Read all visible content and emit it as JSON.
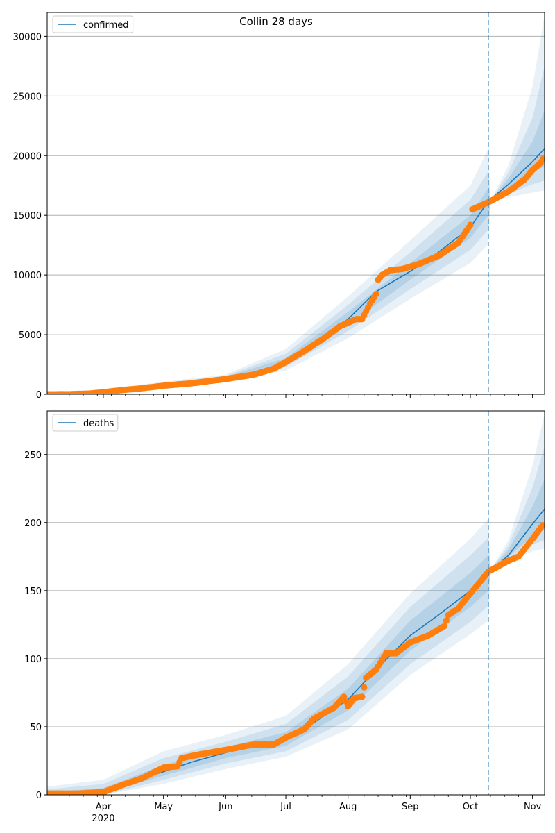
{
  "figure_title": "Collin 28 days",
  "colors": {
    "model_line": "#1f77b4",
    "observed": "#ff7f0e",
    "band": "#1f77b4",
    "grid": "#b0b0b0",
    "forecast_line": "#1f77b4"
  },
  "x_axis": {
    "start": "2020-03-04",
    "end": "2020-11-07",
    "month_labels": [
      {
        "date": "2020-04-01",
        "label": "Apr"
      },
      {
        "date": "2020-05-01",
        "label": "May"
      },
      {
        "date": "2020-06-01",
        "label": "Jun"
      },
      {
        "date": "2020-07-01",
        "label": "Jul"
      },
      {
        "date": "2020-08-01",
        "label": "Aug"
      },
      {
        "date": "2020-09-01",
        "label": "Sep"
      },
      {
        "date": "2020-10-01",
        "label": "Oct"
      },
      {
        "date": "2020-11-01",
        "label": "Nov"
      }
    ],
    "year_label": "2020",
    "forecast_start": "2020-10-10"
  },
  "chart_data": [
    {
      "type": "line",
      "name": "confirmed",
      "legend": "confirmed",
      "legend_position": "top-left",
      "grid": true,
      "ylim": [
        0,
        32000
      ],
      "yticks": [
        0,
        5000,
        10000,
        15000,
        20000,
        25000,
        30000
      ],
      "model_points": [
        {
          "x": "2020-03-04",
          "y": 0
        },
        {
          "x": "2020-03-20",
          "y": 30
        },
        {
          "x": "2020-04-01",
          "y": 250
        },
        {
          "x": "2020-04-15",
          "y": 520
        },
        {
          "x": "2020-05-01",
          "y": 800
        },
        {
          "x": "2020-05-15",
          "y": 1030
        },
        {
          "x": "2020-06-01",
          "y": 1350
        },
        {
          "x": "2020-06-15",
          "y": 1650
        },
        {
          "x": "2020-06-25",
          "y": 2200
        },
        {
          "x": "2020-07-01",
          "y": 2800
        },
        {
          "x": "2020-07-15",
          "y": 4100
        },
        {
          "x": "2020-08-01",
          "y": 6300
        },
        {
          "x": "2020-08-15",
          "y": 8600
        },
        {
          "x": "2020-09-01",
          "y": 10300
        },
        {
          "x": "2020-09-15",
          "y": 11900
        },
        {
          "x": "2020-10-01",
          "y": 14000
        },
        {
          "x": "2020-10-10",
          "y": 16200
        },
        {
          "x": "2020-10-20",
          "y": 17600
        },
        {
          "x": "2020-11-01",
          "y": 19500
        },
        {
          "x": "2020-11-07",
          "y": 20600
        }
      ],
      "bands": [
        {
          "level": "outer",
          "points": [
            {
              "x": "2020-03-04",
              "lo": 0,
              "hi": 100
            },
            {
              "x": "2020-04-01",
              "lo": 130,
              "hi": 400
            },
            {
              "x": "2020-05-01",
              "lo": 600,
              "hi": 1050
            },
            {
              "x": "2020-06-01",
              "lo": 1100,
              "hi": 1650
            },
            {
              "x": "2020-07-01",
              "lo": 2000,
              "hi": 3800
            },
            {
              "x": "2020-08-01",
              "lo": 4700,
              "hi": 8200
            },
            {
              "x": "2020-09-01",
              "lo": 8000,
              "hi": 12900
            },
            {
              "x": "2020-10-01",
              "lo": 11000,
              "hi": 17500
            },
            {
              "x": "2020-10-10",
              "lo": 12600,
              "hi": 20600
            },
            {
              "x": "2020-10-11",
              "lo": 16200,
              "hi": 16200
            },
            {
              "x": "2020-10-20",
              "lo": 16500,
              "hi": 19200
            },
            {
              "x": "2020-11-01",
              "lo": 16900,
              "hi": 25800
            },
            {
              "x": "2020-11-07",
              "lo": 17100,
              "hi": 31800
            }
          ]
        },
        {
          "level": "middle",
          "points": [
            {
              "x": "2020-03-04",
              "lo": 0,
              "hi": 60
            },
            {
              "x": "2020-04-01",
              "lo": 170,
              "hi": 340
            },
            {
              "x": "2020-05-01",
              "lo": 670,
              "hi": 960
            },
            {
              "x": "2020-06-01",
              "lo": 1200,
              "hi": 1550
            },
            {
              "x": "2020-07-01",
              "lo": 2300,
              "hi": 3400
            },
            {
              "x": "2020-08-01",
              "lo": 5300,
              "hi": 7500
            },
            {
              "x": "2020-09-01",
              "lo": 8800,
              "hi": 11900
            },
            {
              "x": "2020-10-01",
              "lo": 12100,
              "hi": 16300
            },
            {
              "x": "2020-10-10",
              "lo": 13800,
              "hi": 18700
            },
            {
              "x": "2020-10-11",
              "lo": 16200,
              "hi": 16200
            },
            {
              "x": "2020-10-20",
              "lo": 16800,
              "hi": 18600
            },
            {
              "x": "2020-11-01",
              "lo": 17600,
              "hi": 23200
            },
            {
              "x": "2020-11-07",
              "lo": 17900,
              "hi": 27500
            }
          ]
        },
        {
          "level": "inner",
          "points": [
            {
              "x": "2020-03-04",
              "lo": 0,
              "hi": 30
            },
            {
              "x": "2020-04-01",
              "lo": 210,
              "hi": 290
            },
            {
              "x": "2020-05-01",
              "lo": 730,
              "hi": 880
            },
            {
              "x": "2020-06-01",
              "lo": 1270,
              "hi": 1450
            },
            {
              "x": "2020-07-01",
              "lo": 2550,
              "hi": 3050
            },
            {
              "x": "2020-08-01",
              "lo": 5800,
              "hi": 6900
            },
            {
              "x": "2020-09-01",
              "lo": 9600,
              "hi": 11000
            },
            {
              "x": "2020-10-01",
              "lo": 13100,
              "hi": 15000
            },
            {
              "x": "2020-10-10",
              "lo": 15000,
              "hi": 17300
            },
            {
              "x": "2020-10-11",
              "lo": 16200,
              "hi": 16200
            },
            {
              "x": "2020-10-20",
              "lo": 17200,
              "hi": 18100
            },
            {
              "x": "2020-11-01",
              "lo": 18600,
              "hi": 21200
            },
            {
              "x": "2020-11-07",
              "lo": 19100,
              "hi": 23800
            }
          ]
        }
      ],
      "observed_points": [
        {
          "x": "2020-03-04",
          "y": 0
        },
        {
          "x": "2020-03-15",
          "y": 10
        },
        {
          "x": "2020-03-25",
          "y": 60
        },
        {
          "x": "2020-04-01",
          "y": 170
        },
        {
          "x": "2020-04-10",
          "y": 350
        },
        {
          "x": "2020-04-20",
          "y": 500
        },
        {
          "x": "2020-05-01",
          "y": 720
        },
        {
          "x": "2020-05-15",
          "y": 920
        },
        {
          "x": "2020-06-01",
          "y": 1280
        },
        {
          "x": "2020-06-15",
          "y": 1650
        },
        {
          "x": "2020-06-25",
          "y": 2150
        },
        {
          "x": "2020-07-01",
          "y": 2700
        },
        {
          "x": "2020-07-10",
          "y": 3600
        },
        {
          "x": "2020-07-20",
          "y": 4700
        },
        {
          "x": "2020-07-28",
          "y": 5700
        },
        {
          "x": "2020-08-05",
          "y": 6300
        },
        {
          "x": "2020-08-08",
          "y": 6300
        },
        {
          "x": "2020-08-12",
          "y": 7600
        },
        {
          "x": "2020-08-15",
          "y": 8400
        },
        {
          "x": "2020-08-16",
          "y": 9600
        },
        {
          "x": "2020-08-18",
          "y": 10000
        },
        {
          "x": "2020-08-22",
          "y": 10400
        },
        {
          "x": "2020-08-28",
          "y": 10500
        },
        {
          "x": "2020-09-05",
          "y": 10900
        },
        {
          "x": "2020-09-15",
          "y": 11600
        },
        {
          "x": "2020-09-25",
          "y": 12700
        },
        {
          "x": "2020-10-01",
          "y": 14200
        },
        {
          "x": "2020-10-02",
          "y": 15500
        },
        {
          "x": "2020-10-10",
          "y": 16100
        },
        {
          "x": "2020-10-20",
          "y": 17000
        },
        {
          "x": "2020-10-28",
          "y": 18000
        },
        {
          "x": "2020-11-01",
          "y": 18800
        },
        {
          "x": "2020-11-05",
          "y": 19400
        },
        {
          "x": "2020-11-06",
          "y": 19700
        }
      ]
    },
    {
      "type": "line",
      "name": "deaths",
      "legend": "deaths",
      "legend_position": "top-left",
      "grid": true,
      "ylim": [
        0,
        282
      ],
      "yticks": [
        0,
        50,
        100,
        150,
        200,
        250
      ],
      "model_points": [
        {
          "x": "2020-03-04",
          "y": 0
        },
        {
          "x": "2020-03-20",
          "y": 0.5
        },
        {
          "x": "2020-04-01",
          "y": 3
        },
        {
          "x": "2020-04-15",
          "y": 10
        },
        {
          "x": "2020-05-01",
          "y": 17
        },
        {
          "x": "2020-05-15",
          "y": 24
        },
        {
          "x": "2020-06-01",
          "y": 31
        },
        {
          "x": "2020-06-15",
          "y": 36
        },
        {
          "x": "2020-07-01",
          "y": 41
        },
        {
          "x": "2020-07-15",
          "y": 53
        },
        {
          "x": "2020-08-01",
          "y": 70
        },
        {
          "x": "2020-08-15",
          "y": 92
        },
        {
          "x": "2020-09-01",
          "y": 117
        },
        {
          "x": "2020-09-15",
          "y": 132
        },
        {
          "x": "2020-10-01",
          "y": 150
        },
        {
          "x": "2020-10-10",
          "y": 163
        },
        {
          "x": "2020-10-20",
          "y": 176
        },
        {
          "x": "2020-11-01",
          "y": 199
        },
        {
          "x": "2020-11-07",
          "y": 210
        }
      ],
      "bands": [
        {
          "level": "outer",
          "points": [
            {
              "x": "2020-03-04",
              "lo": 0,
              "hi": 6
            },
            {
              "x": "2020-04-01",
              "lo": 0,
              "hi": 11
            },
            {
              "x": "2020-05-01",
              "lo": 8,
              "hi": 32
            },
            {
              "x": "2020-06-01",
              "lo": 19,
              "hi": 44
            },
            {
              "x": "2020-07-01",
              "lo": 28,
              "hi": 58
            },
            {
              "x": "2020-08-01",
              "lo": 48,
              "hi": 96
            },
            {
              "x": "2020-09-01",
              "lo": 88,
              "hi": 148
            },
            {
              "x": "2020-10-01",
              "lo": 118,
              "hi": 188
            },
            {
              "x": "2020-10-10",
              "lo": 128,
              "hi": 203
            },
            {
              "x": "2020-10-11",
              "lo": 165,
              "hi": 165
            },
            {
              "x": "2020-10-20",
              "lo": 171,
              "hi": 187
            },
            {
              "x": "2020-11-01",
              "lo": 179,
              "hi": 242
            },
            {
              "x": "2020-11-07",
              "lo": 181,
              "hi": 280
            }
          ]
        },
        {
          "level": "middle",
          "points": [
            {
              "x": "2020-03-04",
              "lo": 0,
              "hi": 4
            },
            {
              "x": "2020-04-01",
              "lo": 0,
              "hi": 8
            },
            {
              "x": "2020-05-01",
              "lo": 11,
              "hi": 27
            },
            {
              "x": "2020-06-01",
              "lo": 23,
              "hi": 39
            },
            {
              "x": "2020-07-01",
              "lo": 32,
              "hi": 52
            },
            {
              "x": "2020-08-01",
              "lo": 55,
              "hi": 87
            },
            {
              "x": "2020-09-01",
              "lo": 96,
              "hi": 138
            },
            {
              "x": "2020-10-01",
              "lo": 127,
              "hi": 176
            },
            {
              "x": "2020-10-10",
              "lo": 139,
              "hi": 189
            },
            {
              "x": "2020-10-11",
              "lo": 165,
              "hi": 165
            },
            {
              "x": "2020-10-20",
              "lo": 173,
              "hi": 183
            },
            {
              "x": "2020-11-01",
              "lo": 184,
              "hi": 226
            },
            {
              "x": "2020-11-07",
              "lo": 187,
              "hi": 256
            }
          ]
        },
        {
          "level": "inner",
          "points": [
            {
              "x": "2020-03-04",
              "lo": 0,
              "hi": 2
            },
            {
              "x": "2020-04-01",
              "lo": 1,
              "hi": 5
            },
            {
              "x": "2020-05-01",
              "lo": 14,
              "hi": 22
            },
            {
              "x": "2020-06-01",
              "lo": 27,
              "hi": 35
            },
            {
              "x": "2020-07-01",
              "lo": 36,
              "hi": 46
            },
            {
              "x": "2020-08-01",
              "lo": 62,
              "hi": 78
            },
            {
              "x": "2020-09-01",
              "lo": 106,
              "hi": 128
            },
            {
              "x": "2020-10-01",
              "lo": 138,
              "hi": 163
            },
            {
              "x": "2020-10-10",
              "lo": 150,
              "hi": 176
            },
            {
              "x": "2020-10-11",
              "lo": 165,
              "hi": 165
            },
            {
              "x": "2020-10-20",
              "lo": 175,
              "hi": 180
            },
            {
              "x": "2020-11-01",
              "lo": 190,
              "hi": 212
            },
            {
              "x": "2020-11-07",
              "lo": 195,
              "hi": 232
            }
          ]
        }
      ],
      "observed_points": [
        {
          "x": "2020-03-04",
          "y": 1
        },
        {
          "x": "2020-03-20",
          "y": 1
        },
        {
          "x": "2020-04-01",
          "y": 2
        },
        {
          "x": "2020-04-10",
          "y": 7
        },
        {
          "x": "2020-04-20",
          "y": 12
        },
        {
          "x": "2020-05-01",
          "y": 20
        },
        {
          "x": "2020-05-08",
          "y": 21
        },
        {
          "x": "2020-05-10",
          "y": 27
        },
        {
          "x": "2020-05-20",
          "y": 30
        },
        {
          "x": "2020-06-01",
          "y": 33
        },
        {
          "x": "2020-06-15",
          "y": 37
        },
        {
          "x": "2020-06-25",
          "y": 37
        },
        {
          "x": "2020-07-01",
          "y": 42
        },
        {
          "x": "2020-07-10",
          "y": 48
        },
        {
          "x": "2020-07-15",
          "y": 56
        },
        {
          "x": "2020-07-25",
          "y": 64
        },
        {
          "x": "2020-07-30",
          "y": 72
        },
        {
          "x": "2020-08-01",
          "y": 65
        },
        {
          "x": "2020-08-04",
          "y": 71
        },
        {
          "x": "2020-08-08",
          "y": 72
        },
        {
          "x": "2020-08-10",
          "y": 86
        },
        {
          "x": "2020-08-15",
          "y": 92
        },
        {
          "x": "2020-08-20",
          "y": 104
        },
        {
          "x": "2020-08-25",
          "y": 104
        },
        {
          "x": "2020-09-01",
          "y": 112
        },
        {
          "x": "2020-09-10",
          "y": 117
        },
        {
          "x": "2020-09-18",
          "y": 124
        },
        {
          "x": "2020-09-20",
          "y": 132
        },
        {
          "x": "2020-09-25",
          "y": 137
        },
        {
          "x": "2020-10-01",
          "y": 148
        },
        {
          "x": "2020-10-05",
          "y": 155
        },
        {
          "x": "2020-10-10",
          "y": 164
        },
        {
          "x": "2020-10-20",
          "y": 172
        },
        {
          "x": "2020-10-25",
          "y": 175
        },
        {
          "x": "2020-11-01",
          "y": 188
        },
        {
          "x": "2020-11-05",
          "y": 196
        },
        {
          "x": "2020-11-06",
          "y": 198
        }
      ]
    }
  ]
}
